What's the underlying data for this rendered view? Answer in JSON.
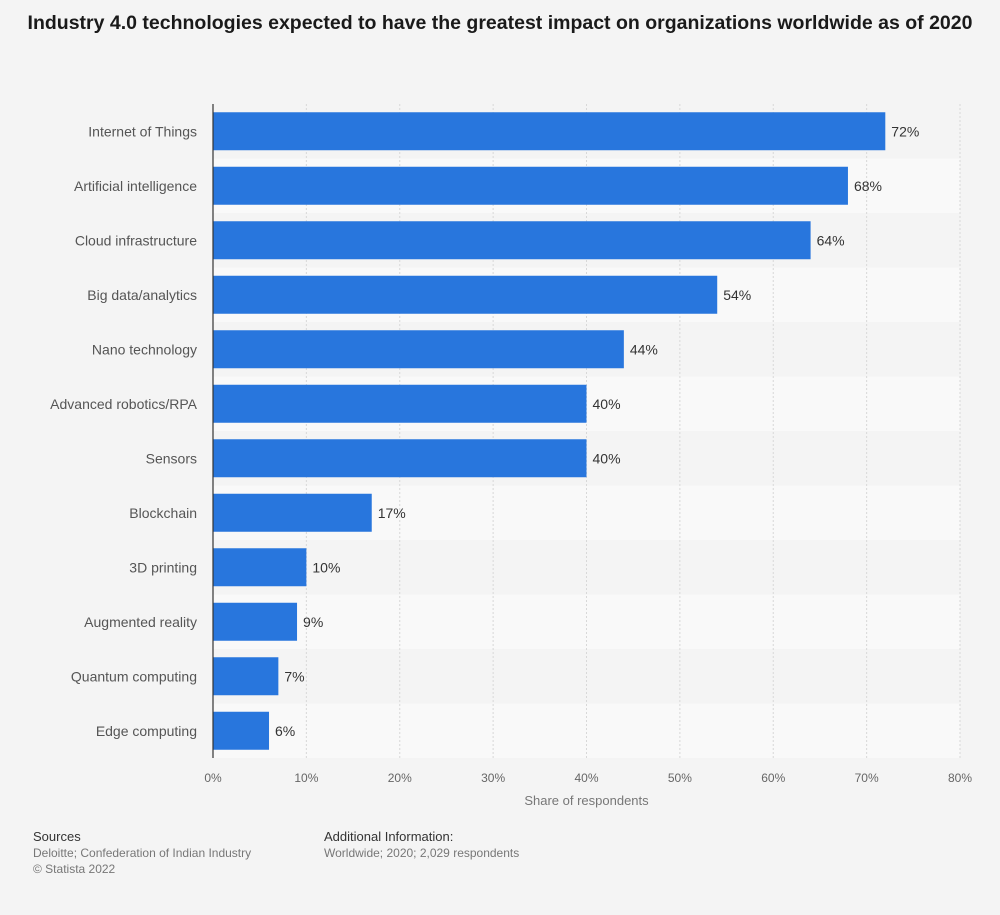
{
  "title": "Industry 4.0 technologies expected to have the greatest impact on organizations worldwide as of 2020",
  "sources": {
    "heading": "Sources",
    "line1": "Deloitte; Confederation of Indian Industry",
    "line2": "© Statista 2022"
  },
  "additional_info": {
    "heading": "Additional Information:",
    "text": "Worldwide; 2020; 2,029 respondents"
  },
  "colors": {
    "bar": "#2876dd",
    "band": "#f9f9f9",
    "background": "#f4f4f4"
  },
  "chart_data": {
    "type": "bar",
    "orientation": "horizontal",
    "categories": [
      "Internet of Things",
      "Artificial intelligence",
      "Cloud infrastructure",
      "Big data/analytics",
      "Nano technology",
      "Advanced robotics/RPA",
      "Sensors",
      "Blockchain",
      "3D printing",
      "Augmented reality",
      "Quantum computing",
      "Edge computing"
    ],
    "values": [
      72,
      68,
      64,
      54,
      44,
      40,
      40,
      17,
      10,
      9,
      7,
      6
    ],
    "value_labels": [
      "72%",
      "68%",
      "64%",
      "54%",
      "44%",
      "40%",
      "40%",
      "17%",
      "10%",
      "9%",
      "7%",
      "6%"
    ],
    "xlabel": "Share of respondents",
    "ylabel": "",
    "xlim": [
      0,
      80
    ],
    "xticks": [
      0,
      10,
      20,
      30,
      40,
      50,
      60,
      70,
      80
    ],
    "xtick_labels": [
      "0%",
      "10%",
      "20%",
      "30%",
      "40%",
      "50%",
      "60%",
      "70%",
      "80%"
    ],
    "grid": true,
    "legend": "none"
  }
}
